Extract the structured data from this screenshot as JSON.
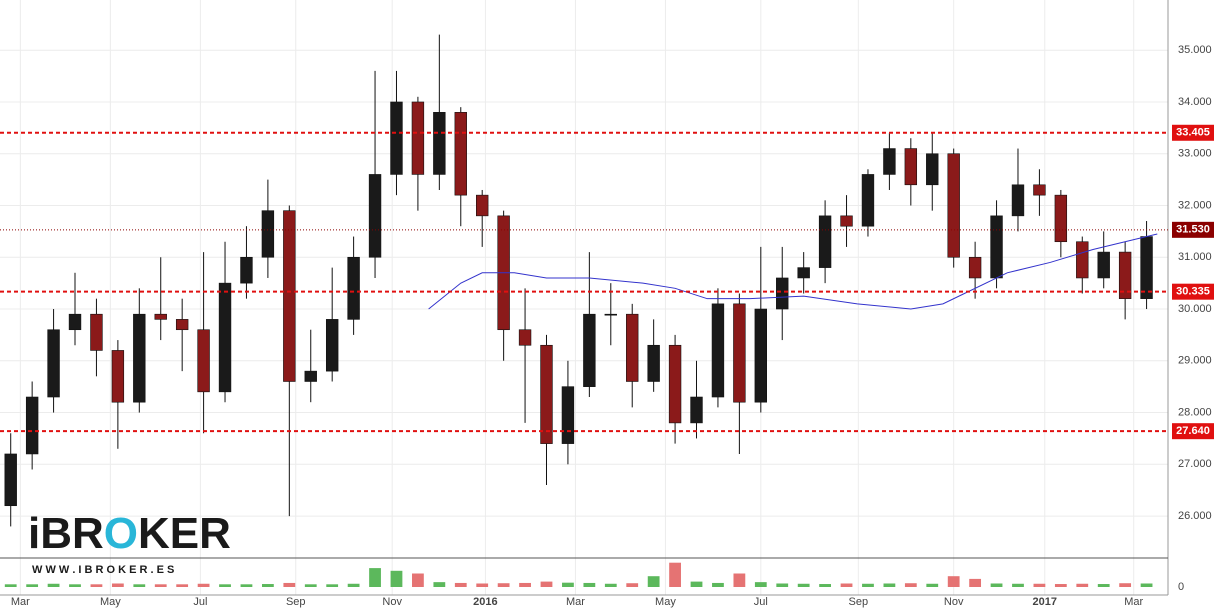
{
  "chart_data": {
    "type": "candlestick",
    "x": [
      1,
      3,
      5,
      7,
      9,
      11,
      13,
      15,
      17,
      19,
      21,
      23,
      25,
      27,
      29,
      31,
      33,
      35,
      37,
      39,
      41,
      43,
      45,
      47,
      49,
      51,
      53,
      55,
      57,
      59,
      61,
      63,
      65,
      67,
      69,
      71,
      73,
      75,
      77,
      79,
      81,
      83,
      85,
      87,
      89,
      91,
      93,
      95,
      97,
      99,
      101,
      103,
      105,
      107
    ],
    "open": [
      26.2,
      27.2,
      28.3,
      29.6,
      29.9,
      29.2,
      28.2,
      29.9,
      29.8,
      29.6,
      28.4,
      30.5,
      31.0,
      31.9,
      28.6,
      28.8,
      29.8,
      31.0,
      32.6,
      34.0,
      32.6,
      33.8,
      32.2,
      31.8,
      29.6,
      29.3,
      27.4,
      28.5,
      29.9,
      29.9,
      28.6,
      29.3,
      27.8,
      28.3,
      30.1,
      28.2,
      30.0,
      30.6,
      30.8,
      31.8,
      31.6,
      32.6,
      33.1,
      32.4,
      33.0,
      31.0,
      30.6,
      31.8,
      32.4,
      32.2,
      31.3,
      30.6,
      31.1,
      30.2
    ],
    "high": [
      27.6,
      28.6,
      30.0,
      30.7,
      30.2,
      29.4,
      30.4,
      31.0,
      30.2,
      31.1,
      31.3,
      31.6,
      32.5,
      32.0,
      29.6,
      30.8,
      31.4,
      34.6,
      34.6,
      34.1,
      35.3,
      33.9,
      32.3,
      31.9,
      30.4,
      29.5,
      29.0,
      31.1,
      30.5,
      30.1,
      29.8,
      29.5,
      29.0,
      30.4,
      30.3,
      31.2,
      31.2,
      31.1,
      32.1,
      32.2,
      32.7,
      33.4,
      33.3,
      33.4,
      33.1,
      31.3,
      32.1,
      33.1,
      32.7,
      32.3,
      31.4,
      31.5,
      31.3,
      31.7
    ],
    "low": [
      25.8,
      26.9,
      28.0,
      29.3,
      28.7,
      27.3,
      28.0,
      29.4,
      28.8,
      27.6,
      28.2,
      30.2,
      30.6,
      26.0,
      28.2,
      28.6,
      29.5,
      30.6,
      32.2,
      31.9,
      32.3,
      31.6,
      31.2,
      29.0,
      27.8,
      26.6,
      27.0,
      28.3,
      29.3,
      28.1,
      28.4,
      27.4,
      27.5,
      28.1,
      27.2,
      28.0,
      29.4,
      30.3,
      30.5,
      31.2,
      31.4,
      32.3,
      32.0,
      31.9,
      30.8,
      30.2,
      30.4,
      31.5,
      31.8,
      31.0,
      30.3,
      30.4,
      29.8,
      30.0
    ],
    "close": [
      27.2,
      28.3,
      29.6,
      29.9,
      29.2,
      28.2,
      29.9,
      29.8,
      29.6,
      28.4,
      30.5,
      31.0,
      31.9,
      28.6,
      28.8,
      29.8,
      31.0,
      32.6,
      34.0,
      32.6,
      33.8,
      32.2,
      31.8,
      29.6,
      29.3,
      27.4,
      28.5,
      29.9,
      29.9,
      28.6,
      29.3,
      27.8,
      28.3,
      30.1,
      28.2,
      30.0,
      30.6,
      30.8,
      31.8,
      31.6,
      32.6,
      33.1,
      32.4,
      33.0,
      31.0,
      30.6,
      31.8,
      32.4,
      32.2,
      31.3,
      30.6,
      31.1,
      30.2,
      31.4
    ],
    "up_color": "#1a1a1a",
    "down_color": "#8b1a1a",
    "volume": [
      1,
      1,
      1.2,
      1,
      1,
      1.3,
      1,
      1,
      1,
      1.2,
      1,
      1,
      1.1,
      1.5,
      1,
      1,
      1.2,
      7,
      6,
      5,
      1.8,
      1.5,
      1.3,
      1.4,
      1.5,
      2,
      1.6,
      1.5,
      1.2,
      1.4,
      4,
      9,
      2,
      1.5,
      5,
      1.8,
      1.3,
      1.2,
      1.1,
      1.3,
      1.2,
      1.3,
      1.4,
      1.2,
      4,
      3,
      1.3,
      1.2,
      1.2,
      1.1,
      1.2,
      1.1,
      1.4,
      1.3
    ],
    "volume_up_color": "#5cb85c",
    "volume_down_color": "#e57373",
    "volume_ylim": [
      0,
      10
    ],
    "volume_yticks": [
      0
    ],
    "moving_average": {
      "color": "#3333cc",
      "x": [
        40,
        43,
        45,
        48,
        51,
        55,
        60,
        63,
        66,
        70,
        75,
        80,
        85,
        88,
        90,
        94,
        98,
        102,
        106,
        108
      ],
      "values": [
        30.0,
        30.5,
        30.7,
        30.7,
        30.6,
        30.6,
        30.5,
        30.4,
        30.2,
        30.2,
        30.25,
        30.1,
        30.0,
        30.1,
        30.3,
        30.7,
        30.9,
        31.15,
        31.35,
        31.45
      ]
    },
    "levels": [
      {
        "value": 33.405,
        "label": "33.405",
        "color": "#e01010",
        "style": "dashed"
      },
      {
        "value": 31.53,
        "label": "31.530",
        "color": "#8b0000",
        "style": "dotted"
      },
      {
        "value": 30.335,
        "label": "30.335",
        "color": "#e01010",
        "style": "dashed"
      },
      {
        "value": 27.64,
        "label": "27.640",
        "color": "#e01010",
        "style": "dashed"
      }
    ],
    "xlim": [
      0,
      109
    ],
    "ylim": [
      25.19,
      35.97
    ],
    "yticks": [
      {
        "value": 26,
        "label": "26.000"
      },
      {
        "value": 27,
        "label": "27.000"
      },
      {
        "value": 28,
        "label": "28.000"
      },
      {
        "value": 29,
        "label": "29.000"
      },
      {
        "value": 30,
        "label": "30.000"
      },
      {
        "value": 31,
        "label": "31.000"
      },
      {
        "value": 32,
        "label": "32.000"
      },
      {
        "value": 33,
        "label": "33.000"
      },
      {
        "value": 34,
        "label": "34.000"
      },
      {
        "value": 35,
        "label": "35.000"
      }
    ],
    "xticks": [
      {
        "value": 1.9,
        "label": "Mar"
      },
      {
        "value": 10.3,
        "label": "May"
      },
      {
        "value": 18.7,
        "label": "Jul"
      },
      {
        "value": 27.6,
        "label": "Sep"
      },
      {
        "value": 36.6,
        "label": "Nov"
      },
      {
        "value": 45.3,
        "label": "2016"
      },
      {
        "value": 53.7,
        "label": "Mar"
      },
      {
        "value": 62.1,
        "label": "May"
      },
      {
        "value": 71.0,
        "label": "Jul"
      },
      {
        "value": 80.1,
        "label": "Sep"
      },
      {
        "value": 89.0,
        "label": "Nov"
      },
      {
        "value": 97.5,
        "label": "2017"
      },
      {
        "value": 105.8,
        "label": "Mar"
      }
    ],
    "grid": true
  },
  "logo": {
    "parts": [
      "iBR",
      "O",
      "KER"
    ],
    "url": "W W W . I B R O K E R . E S"
  }
}
